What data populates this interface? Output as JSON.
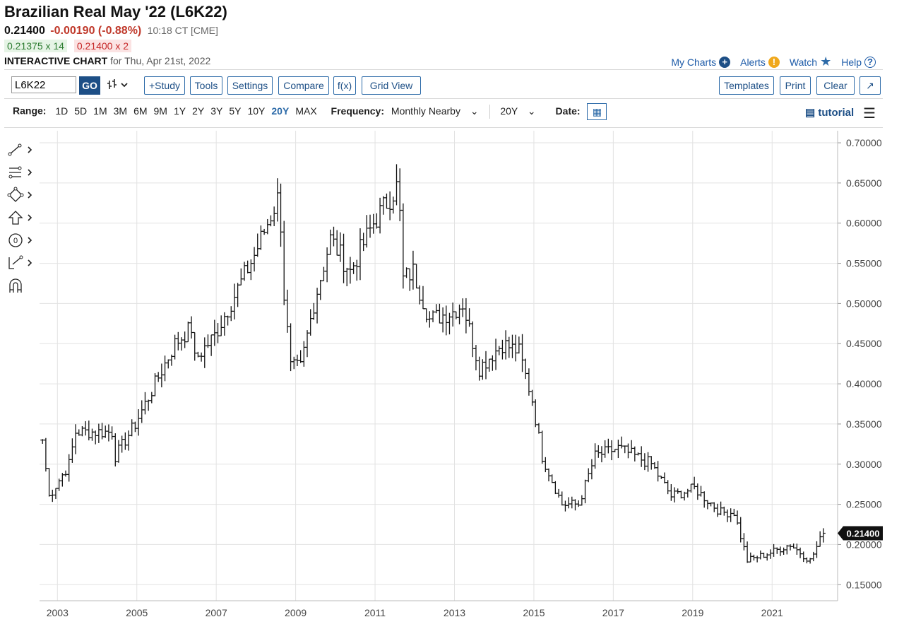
{
  "header": {
    "title": "Brazilian Real May '22 (L6K22)",
    "last": "0.21400",
    "change": "-0.00190 (-0.88%)",
    "time": "10:18 CT [CME]",
    "bid": "0.21375 x 14",
    "ask": "0.21400 x 2",
    "chart_label": "INTERACTIVE CHART",
    "chart_for": "for Thu, Apr 21st, 2022"
  },
  "toplinks": {
    "my_charts": "My Charts",
    "alerts": "Alerts",
    "watch": "Watch",
    "help": "Help"
  },
  "toolbar": {
    "symbol_value": "L6K22",
    "go": "GO",
    "study": "+Study",
    "tools": "Tools",
    "settings": "Settings",
    "compare": "Compare",
    "fx": "f(x)",
    "grid_view": "Grid View",
    "templates": "Templates",
    "print": "Print",
    "clear": "Clear"
  },
  "rangebar": {
    "range_label": "Range:",
    "ranges": [
      "1D",
      "5D",
      "1M",
      "3M",
      "6M",
      "9M",
      "1Y",
      "2Y",
      "3Y",
      "5Y",
      "10Y",
      "20Y",
      "MAX"
    ],
    "selected_range": "20Y",
    "frequency_label": "Frequency:",
    "frequency_value": "Monthly Nearby",
    "period_value": "20Y",
    "date_label": "Date:",
    "tutorial": "tutorial"
  },
  "colors": {
    "accent": "#2c6aa8",
    "down": "#c0392b",
    "bars": "#111111",
    "grid": "#e0e0e0"
  },
  "icons": [
    "trend-line-icon",
    "fib-tool-icon",
    "shape-tool-icon",
    "arrow-up-icon",
    "circle-zero-icon",
    "measure-tool-icon",
    "magnet-icon"
  ],
  "chart_data": {
    "type": "ohlc",
    "symbol": "L6K22",
    "frequency": "monthly",
    "x_tick_labels": [
      "2003",
      "2005",
      "2007",
      "2009",
      "2011",
      "2013",
      "2015",
      "2017",
      "2019",
      "2021"
    ],
    "y_tick_labels": [
      "0.70000",
      "0.65000",
      "0.60000",
      "0.55000",
      "0.50000",
      "0.45000",
      "0.40000",
      "0.35000",
      "0.30000",
      "0.25000",
      "0.20000",
      "0.15000"
    ],
    "ylim": [
      0.13,
      0.715
    ],
    "xlim": [
      2002.55,
      2022.65
    ],
    "grid": true,
    "last_value_label": "0.21400",
    "last_value": 0.214,
    "anchors": [
      {
        "date": "2002-08",
        "close": 0.33
      },
      {
        "date": "2002-10",
        "close": 0.26
      },
      {
        "date": "2003-01",
        "close": 0.28
      },
      {
        "date": "2003-04",
        "close": 0.3
      },
      {
        "date": "2003-06",
        "close": 0.34
      },
      {
        "date": "2003-12",
        "close": 0.34
      },
      {
        "date": "2004-05",
        "close": 0.34
      },
      {
        "date": "2004-06",
        "close": 0.31
      },
      {
        "date": "2004-12",
        "close": 0.35
      },
      {
        "date": "2005-06",
        "close": 0.4
      },
      {
        "date": "2005-12",
        "close": 0.45
      },
      {
        "date": "2006-05",
        "close": 0.47
      },
      {
        "date": "2006-06",
        "close": 0.43
      },
      {
        "date": "2006-12",
        "close": 0.46
      },
      {
        "date": "2007-06",
        "close": 0.51
      },
      {
        "date": "2007-12",
        "close": 0.56
      },
      {
        "date": "2008-07",
        "close": 0.63
      },
      {
        "date": "2008-08",
        "close": 0.6
      },
      {
        "date": "2008-09",
        "close": 0.51
      },
      {
        "date": "2008-11",
        "close": 0.42
      },
      {
        "date": "2009-02",
        "close": 0.42
      },
      {
        "date": "2009-06",
        "close": 0.5
      },
      {
        "date": "2009-11",
        "close": 0.58
      },
      {
        "date": "2010-05",
        "close": 0.54
      },
      {
        "date": "2010-12",
        "close": 0.6
      },
      {
        "date": "2011-07",
        "close": 0.645
      },
      {
        "date": "2011-08",
        "close": 0.61
      },
      {
        "date": "2011-09",
        "close": 0.53
      },
      {
        "date": "2011-12",
        "close": 0.54
      },
      {
        "date": "2012-05",
        "close": 0.48
      },
      {
        "date": "2012-12",
        "close": 0.49
      },
      {
        "date": "2013-03",
        "close": 0.5
      },
      {
        "date": "2013-08",
        "close": 0.42
      },
      {
        "date": "2014-03",
        "close": 0.45
      },
      {
        "date": "2014-08",
        "close": 0.44
      },
      {
        "date": "2014-12",
        "close": 0.38
      },
      {
        "date": "2015-03",
        "close": 0.31
      },
      {
        "date": "2015-09",
        "close": 0.25
      },
      {
        "date": "2016-02",
        "close": 0.25
      },
      {
        "date": "2016-07",
        "close": 0.31
      },
      {
        "date": "2017-02",
        "close": 0.32
      },
      {
        "date": "2017-12",
        "close": 0.3
      },
      {
        "date": "2018-06",
        "close": 0.26
      },
      {
        "date": "2019-01",
        "close": 0.27
      },
      {
        "date": "2019-09",
        "close": 0.24
      },
      {
        "date": "2020-01",
        "close": 0.24
      },
      {
        "date": "2020-05",
        "close": 0.18
      },
      {
        "date": "2020-12",
        "close": 0.19
      },
      {
        "date": "2021-06",
        "close": 0.2
      },
      {
        "date": "2021-12",
        "close": 0.18
      },
      {
        "date": "2022-04",
        "close": 0.214
      }
    ]
  }
}
